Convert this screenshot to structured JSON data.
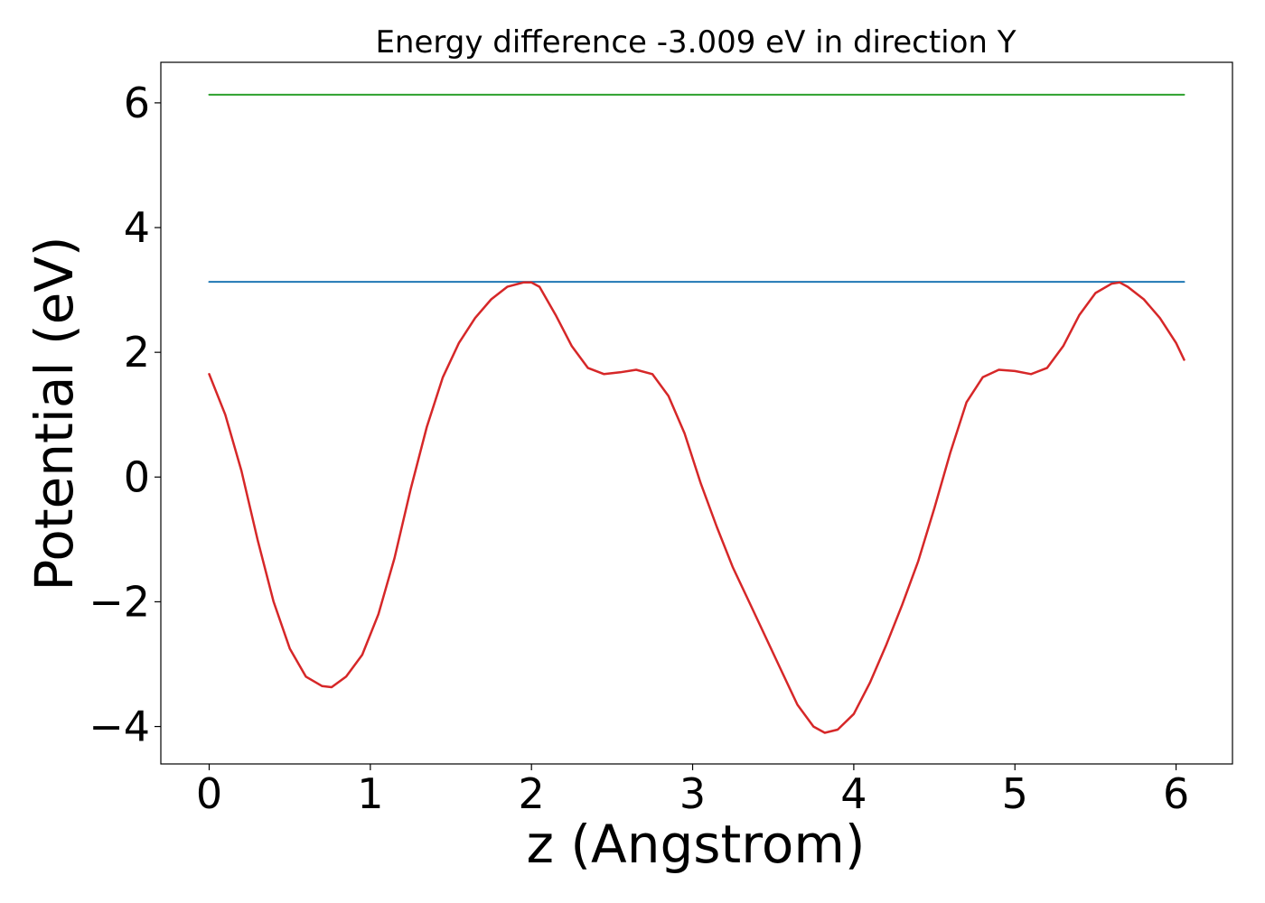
{
  "chart_data": {
    "type": "line",
    "title": "Energy difference -3.009 eV in direction Y",
    "xlabel": "z (Angstrom)",
    "ylabel": "Potential (eV)",
    "xlim": [
      -0.3,
      6.35
    ],
    "ylim": [
      -4.6,
      6.65
    ],
    "xticks": [
      0,
      1,
      2,
      3,
      4,
      5,
      6
    ],
    "xtick_labels": [
      "0",
      "1",
      "2",
      "3",
      "4",
      "5",
      "6"
    ],
    "yticks": [
      -4,
      -2,
      0,
      2,
      4,
      6
    ],
    "ytick_labels": [
      "−4",
      "−2",
      "0",
      "2",
      "4",
      "6"
    ],
    "grid": false,
    "legend": "none",
    "series": [
      {
        "color": "#2ca02c",
        "x": [
          0,
          6.05
        ],
        "y": [
          6.13,
          6.13
        ]
      },
      {
        "color": "#1f77b4",
        "x": [
          0,
          6.05
        ],
        "y": [
          3.13,
          3.13
        ]
      },
      {
        "color": "#d62728",
        "x": [
          0.0,
          0.1,
          0.2,
          0.3,
          0.4,
          0.5,
          0.6,
          0.7,
          0.76,
          0.85,
          0.95,
          1.05,
          1.15,
          1.25,
          1.35,
          1.45,
          1.55,
          1.65,
          1.75,
          1.85,
          1.95,
          2.0,
          2.05,
          2.15,
          2.25,
          2.35,
          2.45,
          2.55,
          2.65,
          2.75,
          2.85,
          2.95,
          3.05,
          3.15,
          3.25,
          3.35,
          3.45,
          3.55,
          3.65,
          3.75,
          3.82,
          3.9,
          4.0,
          4.1,
          4.2,
          4.3,
          4.4,
          4.5,
          4.6,
          4.7,
          4.8,
          4.9,
          5.0,
          5.1,
          5.2,
          5.3,
          5.4,
          5.5,
          5.6,
          5.65,
          5.7,
          5.8,
          5.9,
          6.0,
          6.05
        ],
        "y": [
          1.65,
          1.0,
          0.1,
          -1.0,
          -2.0,
          -2.75,
          -3.2,
          -3.35,
          -3.37,
          -3.2,
          -2.85,
          -2.2,
          -1.3,
          -0.2,
          0.8,
          1.6,
          2.15,
          2.55,
          2.85,
          3.05,
          3.12,
          3.12,
          3.05,
          2.6,
          2.1,
          1.75,
          1.65,
          1.68,
          1.72,
          1.65,
          1.3,
          0.7,
          -0.1,
          -0.8,
          -1.45,
          -2.0,
          -2.55,
          -3.1,
          -3.65,
          -4.0,
          -4.1,
          -4.05,
          -3.8,
          -3.3,
          -2.7,
          -2.05,
          -1.35,
          -0.5,
          0.4,
          1.2,
          1.6,
          1.72,
          1.7,
          1.65,
          1.75,
          2.1,
          2.6,
          2.95,
          3.1,
          3.12,
          3.05,
          2.85,
          2.55,
          2.15,
          1.88
        ]
      }
    ]
  }
}
